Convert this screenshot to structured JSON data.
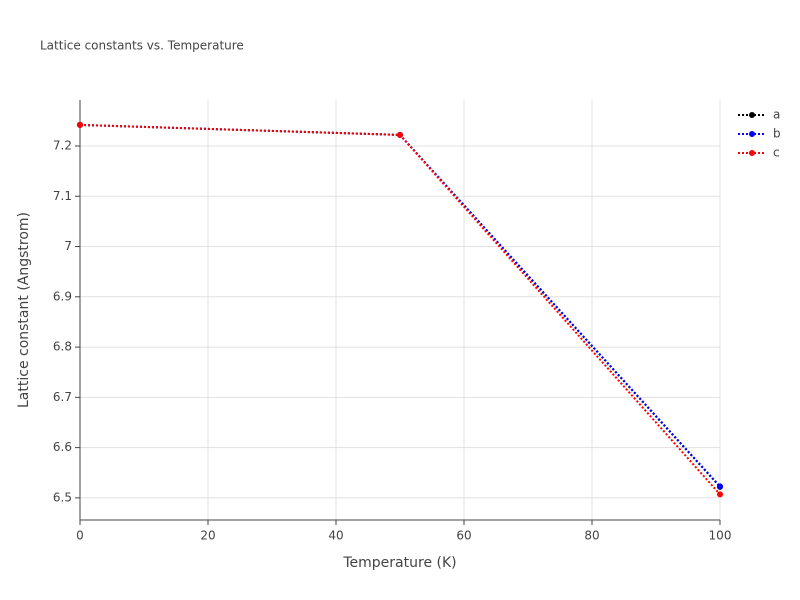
{
  "chart_data": {
    "type": "line",
    "title": "Lattice constants vs. Temperature",
    "x_label": "Temperature (K)",
    "y_label": "Lattice constant (Angstrom)",
    "x": [
      0,
      50,
      100
    ],
    "series": [
      {
        "name": "a",
        "color": "#000000",
        "values": [
          7.242,
          7.222,
          6.522
        ]
      },
      {
        "name": "b",
        "color": "#0000ff",
        "values": [
          7.242,
          7.222,
          6.523
        ]
      },
      {
        "name": "c",
        "color": "#ff0000",
        "values": [
          7.242,
          7.222,
          6.507
        ]
      }
    ],
    "xlim": [
      0,
      100
    ],
    "xticks": [
      0,
      20,
      40,
      60,
      80,
      100
    ],
    "ylim": [
      6.456,
      7.2915
    ],
    "yticks": [
      6.5,
      6.6,
      6.7,
      6.8,
      6.9,
      7,
      7.1,
      7.2
    ],
    "grid": true,
    "legend": "top-right"
  }
}
